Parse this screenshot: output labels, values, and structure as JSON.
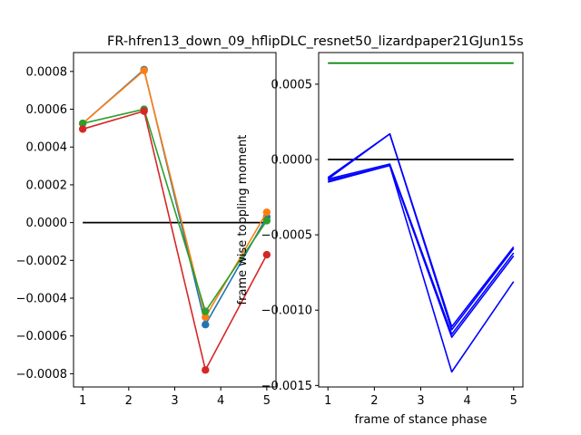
{
  "title": "FR-hfren13_down_09_hflipDLC_resnet50_lizardpaper21GJun15s",
  "chart_data": [
    {
      "type": "line",
      "panel": "left",
      "x": [
        1,
        2.333,
        3.667,
        5
      ],
      "xlim": [
        0.8,
        5.2
      ],
      "ylim": [
        -0.00087,
        0.0009
      ],
      "xticks": [
        1,
        2,
        3,
        4,
        5
      ],
      "xtick_labels": [
        "1",
        "2",
        "3",
        "4",
        "5"
      ],
      "yticks": [
        -0.0008,
        -0.0006,
        -0.0004,
        -0.0002,
        0.0,
        0.0002,
        0.0004,
        0.0006,
        0.0008
      ],
      "ytick_labels": [
        "−0.0008",
        "−0.0006",
        "−0.0004",
        "−0.0002",
        "0.0000",
        "0.0002",
        "0.0004",
        "0.0006",
        "0.0008"
      ],
      "xlabel": "",
      "ylabel": "",
      "reference_line": {
        "y": 0.0,
        "color": "#000000"
      },
      "markers": true,
      "series": [
        {
          "name": "series-blue",
          "color": "#1f77b4",
          "values": [
            0.000525,
            0.00081,
            -0.00054,
            3e-05
          ]
        },
        {
          "name": "series-orange",
          "color": "#ff7f0e",
          "values": [
            0.000525,
            0.000805,
            -0.0005,
            5.5e-05
          ]
        },
        {
          "name": "series-green",
          "color": "#2ca02c",
          "values": [
            0.000525,
            0.0006,
            -0.00047,
            1e-05
          ]
        },
        {
          "name": "series-red",
          "color": "#d62728",
          "values": [
            0.000495,
            0.00059,
            -0.00078,
            -0.00017
          ]
        }
      ]
    },
    {
      "type": "line",
      "panel": "right",
      "x": [
        1,
        2.333,
        3.667,
        5
      ],
      "xlim": [
        0.8,
        5.2
      ],
      "ylim": [
        -0.00151,
        0.00071
      ],
      "xticks": [
        1,
        2,
        3,
        4,
        5
      ],
      "xtick_labels": [
        "1",
        "2",
        "3",
        "4",
        "5"
      ],
      "yticks": [
        -0.0015,
        -0.001,
        -0.0005,
        0.0,
        0.0005
      ],
      "ytick_labels": [
        "−0.0015",
        "−0.0010",
        "−0.0005",
        "0.0000",
        "0.0005"
      ],
      "xlabel": "frame of stance phase",
      "ylabel": "frame wise toppling moment",
      "reference_lines": [
        {
          "y": 0.0,
          "color": "#000000"
        },
        {
          "y": 0.00064,
          "color": "#008000"
        }
      ],
      "markers": false,
      "series": [
        {
          "name": "series-1",
          "color": "#0000ff",
          "values": [
            -0.00012,
            0.00017,
            -0.00111,
            -0.00058
          ]
        },
        {
          "name": "series-2",
          "color": "#0000ff",
          "values": [
            -0.00013,
            0.00017,
            -0.00113,
            -0.00059
          ]
        },
        {
          "name": "series-3",
          "color": "#0000ff",
          "values": [
            -0.00013,
            -3e-05,
            -0.00116,
            -0.00062
          ]
        },
        {
          "name": "series-4",
          "color": "#0000ff",
          "values": [
            -0.00015,
            -4e-05,
            -0.00118,
            -0.00064
          ]
        },
        {
          "name": "series-5",
          "color": "#0000ff",
          "values": [
            -0.00014,
            -4e-05,
            -0.00141,
            -0.00081
          ]
        }
      ]
    }
  ]
}
